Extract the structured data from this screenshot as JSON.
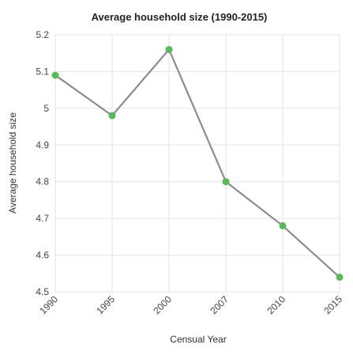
{
  "chart_data": {
    "type": "line",
    "title": "Average household size (1990-2015)",
    "xlabel": "Censual Year",
    "ylabel": "Average household size",
    "categories": [
      "1990",
      "1995",
      "2000",
      "2007",
      "2010",
      "2015"
    ],
    "values": [
      5.09,
      4.98,
      5.16,
      4.8,
      4.68,
      4.54
    ],
    "ylim": [
      4.5,
      5.2
    ],
    "yticks": [
      "4.5",
      "4.6",
      "4.7",
      "4.8",
      "4.9",
      "5",
      "5.1",
      "5.2"
    ],
    "grid": true,
    "legend": "none",
    "colors": {
      "line": "#8c8c8c",
      "marker": "#5cb85c",
      "grid": "#e6e6e6"
    }
  }
}
